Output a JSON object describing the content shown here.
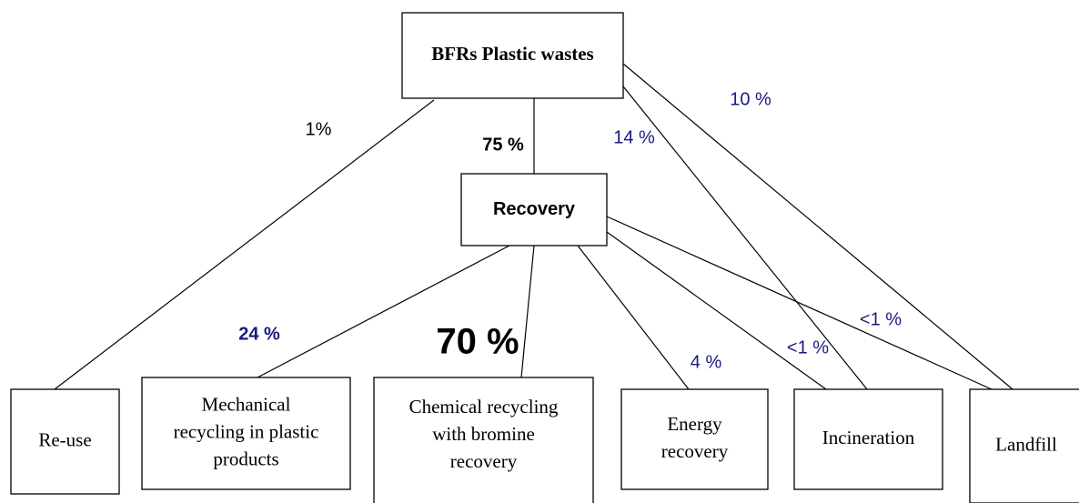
{
  "nodes": [
    {
      "lines": [
        "BFRs Plastic wastes"
      ]
    },
    {
      "lines": [
        "Recovery"
      ]
    },
    {
      "lines": [
        "Re-use"
      ]
    },
    {
      "lines": [
        "Mechanical",
        "recycling in plastic",
        "products"
      ]
    },
    {
      "lines": [
        "Chemical recycling",
        "with bromine",
        "recovery"
      ]
    },
    {
      "lines": [
        "Energy",
        "recovery"
      ]
    },
    {
      "lines": [
        "Incineration"
      ]
    },
    {
      "lines": [
        "Landfill"
      ]
    }
  ],
  "edges": [
    {
      "label": "1%"
    },
    {
      "label": "75 %"
    },
    {
      "label": "14 %"
    },
    {
      "label": "10 %"
    },
    {
      "label": "24 %"
    },
    {
      "label": "70 %"
    },
    {
      "label": "4 %"
    },
    {
      "label": "<1 %"
    },
    {
      "label": "<1 %"
    }
  ]
}
